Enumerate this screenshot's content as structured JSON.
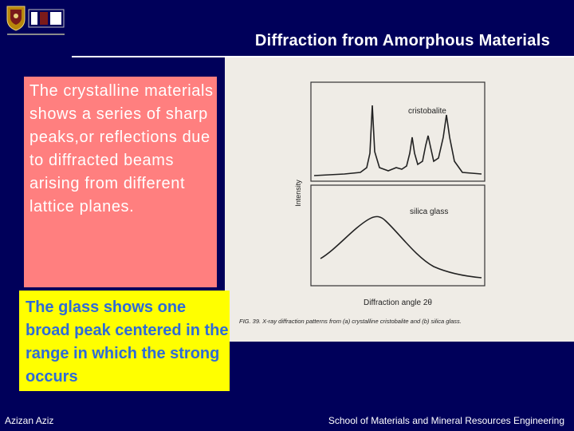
{
  "slide": {
    "title": "Diffraction from Amorphous Materials",
    "crystalline_text": "The crystalline materials shows a series of sharp peaks,or reflections due to diffracted beams arising from different lattice planes.",
    "glass_text": "The glass shows one broad peak centered in the range in which the strong occurs"
  },
  "figure": {
    "label_top": "cristobalite",
    "label_bottom": "silica glass",
    "y_axis_label": "Intensity",
    "x_axis_label": "Diffraction angle 2θ",
    "caption": "FIG. 39. X-ray diffraction patterns from (a) crystalline cristobalite and (b) silica glass."
  },
  "footer": {
    "author": "Azizan Aziz",
    "school": "School of Materials and Mineral Resources Engineering"
  },
  "colors": {
    "background": "#00005a",
    "red_box": "#ff7f7f",
    "yellow_box": "#ffff00",
    "glass_text": "#2e6bd8"
  }
}
